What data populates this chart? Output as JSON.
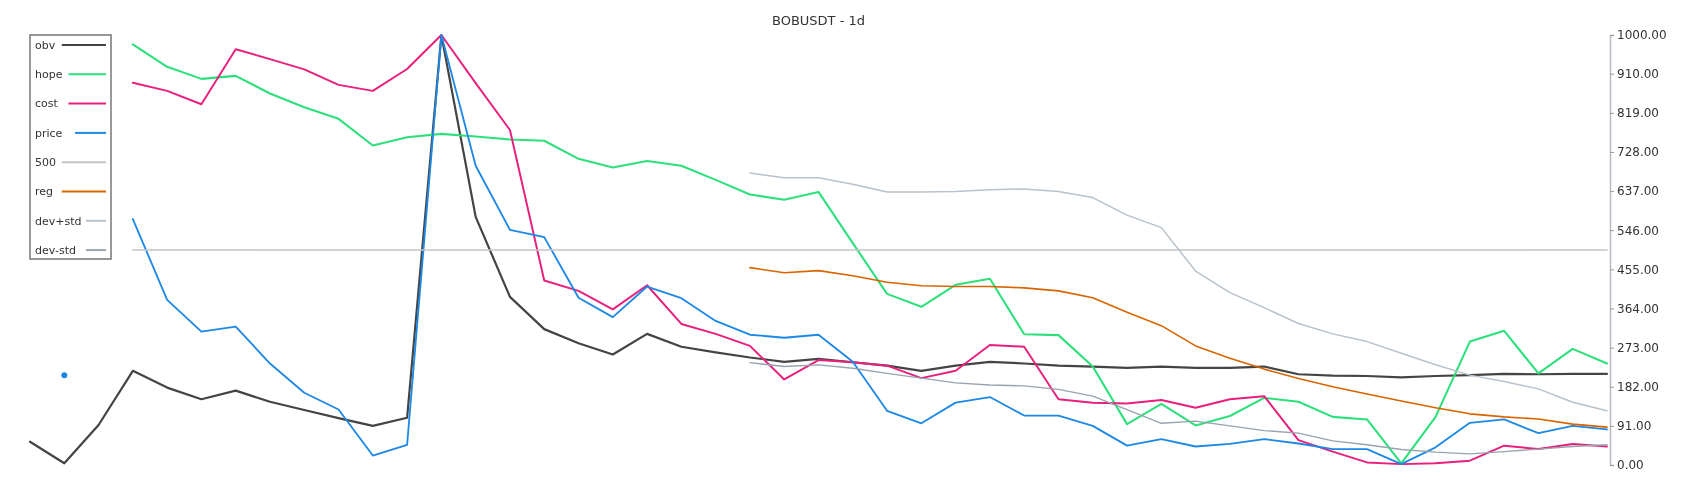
{
  "chart_data": {
    "type": "line",
    "title": "BOBUSDT - 1d",
    "categories": [
      null,
      null,
      null,
      null,
      null,
      null,
      null,
      null,
      null,
      null,
      null,
      null,
      null,
      null,
      null,
      null,
      null,
      null,
      null,
      null,
      null,
      null,
      null,
      null,
      null,
      null,
      null,
      null,
      null,
      null,
      null,
      null,
      null,
      null,
      null,
      null,
      null,
      null,
      null,
      null,
      null,
      null,
      null,
      null,
      null,
      null,
      null
    ],
    "ylim": [
      0,
      1000
    ],
    "yticks": [
      {
        "value": 0,
        "label": "0.00"
      },
      {
        "value": 91,
        "label": "91.00"
      },
      {
        "value": 182,
        "label": "182.00"
      },
      {
        "value": 273,
        "label": "273.00"
      },
      {
        "value": 364,
        "label": "364.00"
      },
      {
        "value": 455,
        "label": "455.00"
      },
      {
        "value": 546,
        "label": "546.00"
      },
      {
        "value": 637,
        "label": "637.00"
      },
      {
        "value": 728,
        "label": "728.00"
      },
      {
        "value": 819,
        "label": "819.00"
      },
      {
        "value": 910,
        "label": "910.00"
      },
      {
        "value": 1000,
        "label": "1000.00"
      }
    ],
    "grid": false,
    "legend": "top left",
    "marker": "none",
    "line_style": "solid",
    "series": [
      {
        "name": "obv",
        "color": "#444444",
        "values": [
          54,
          4,
          93,
          219,
          180,
          153,
          173,
          147,
          128,
          109,
          91,
          110,
          1000,
          577,
          391,
          316,
          283,
          257,
          305,
          275,
          262,
          250,
          240,
          247,
          239,
          231,
          219,
          231,
          240,
          236,
          231,
          229,
          226,
          229,
          226,
          226,
          229,
          211,
          208,
          207,
          204,
          207,
          209,
          212,
          211,
          212,
          212
        ]
      },
      {
        "name": "hope",
        "color": "#2ee07c",
        "values": [
          null,
          null,
          null,
          978,
          926,
          898,
          905,
          864,
          832,
          805,
          743,
          762,
          770,
          764,
          757,
          754,
          712,
          692,
          707,
          696,
          663,
          629,
          617,
          635,
          516,
          398,
          368,
          419,
          433,
          304,
          302,
          229,
          95,
          142,
          92,
          114,
          156,
          147,
          112,
          106,
          4,
          112,
          287,
          312,
          213,
          270,
          236
        ]
      },
      {
        "name": "cost",
        "color": "#e8207c",
        "values": [
          null,
          null,
          null,
          889,
          870,
          839,
          967,
          944,
          920,
          884,
          870,
          921,
          1000,
          888,
          779,
          429,
          405,
          362,
          418,
          328,
          305,
          277,
          199,
          244,
          239,
          231,
          202,
          219,
          279,
          275,
          153,
          145,
          143,
          151,
          133,
          153,
          160,
          58,
          31,
          6,
          2,
          4,
          10,
          45,
          37,
          49,
          43
        ]
      },
      {
        "name": "price",
        "color": "#1e88e5",
        "values": [
          null,
          209,
          null,
          572,
          384,
          310,
          322,
          236,
          168,
          129,
          22,
          47,
          1000,
          696,
          547,
          530,
          389,
          344,
          415,
          388,
          335,
          303,
          296,
          303,
          240,
          126,
          97,
          145,
          158,
          115,
          115,
          91,
          45,
          60,
          43,
          49,
          60,
          50,
          37,
          37,
          2,
          41,
          98,
          106,
          74,
          91,
          83
        ]
      },
      {
        "name": "500",
        "color": "#c4c4c4",
        "values": [
          null,
          null,
          null,
          500,
          500,
          500,
          500,
          500,
          500,
          500,
          500,
          500,
          500,
          500,
          500,
          500,
          500,
          500,
          500,
          500,
          500,
          500,
          500,
          500,
          500,
          500,
          500,
          500,
          500,
          500,
          500,
          500,
          500,
          500,
          500,
          500,
          500,
          500,
          500,
          500,
          500,
          500,
          500,
          500,
          500,
          500,
          500
        ]
      },
      {
        "name": "reg",
        "color": "#d96400",
        "values": [
          null,
          null,
          null,
          null,
          null,
          null,
          null,
          null,
          null,
          null,
          null,
          null,
          null,
          null,
          null,
          null,
          null,
          null,
          null,
          null,
          null,
          459,
          447,
          452,
          440,
          425,
          417,
          415,
          415,
          412,
          405,
          389,
          355,
          324,
          277,
          248,
          223,
          201,
          182,
          165,
          149,
          133,
          119,
          112,
          107,
          95,
          88
        ]
      },
      {
        "name": "dev+std",
        "color": "#b8c2cc",
        "values": [
          null,
          null,
          null,
          null,
          null,
          null,
          null,
          null,
          null,
          null,
          null,
          null,
          null,
          null,
          null,
          null,
          null,
          null,
          null,
          null,
          null,
          679,
          668,
          668,
          653,
          635,
          635,
          636,
          640,
          642,
          636,
          622,
          581,
          552,
          451,
          401,
          366,
          329,
          305,
          287,
          260,
          233,
          209,
          194,
          177,
          146,
          126
        ]
      },
      {
        "name": "dev-std",
        "color": "#98a3ae",
        "values": [
          null,
          null,
          null,
          null,
          null,
          null,
          null,
          null,
          null,
          null,
          null,
          null,
          null,
          null,
          null,
          null,
          null,
          null,
          null,
          null,
          null,
          238,
          229,
          233,
          225,
          213,
          202,
          191,
          186,
          184,
          176,
          160,
          129,
          97,
          102,
          91,
          80,
          74,
          56,
          47,
          36,
          30,
          26,
          31,
          37,
          43,
          47
        ]
      }
    ]
  }
}
